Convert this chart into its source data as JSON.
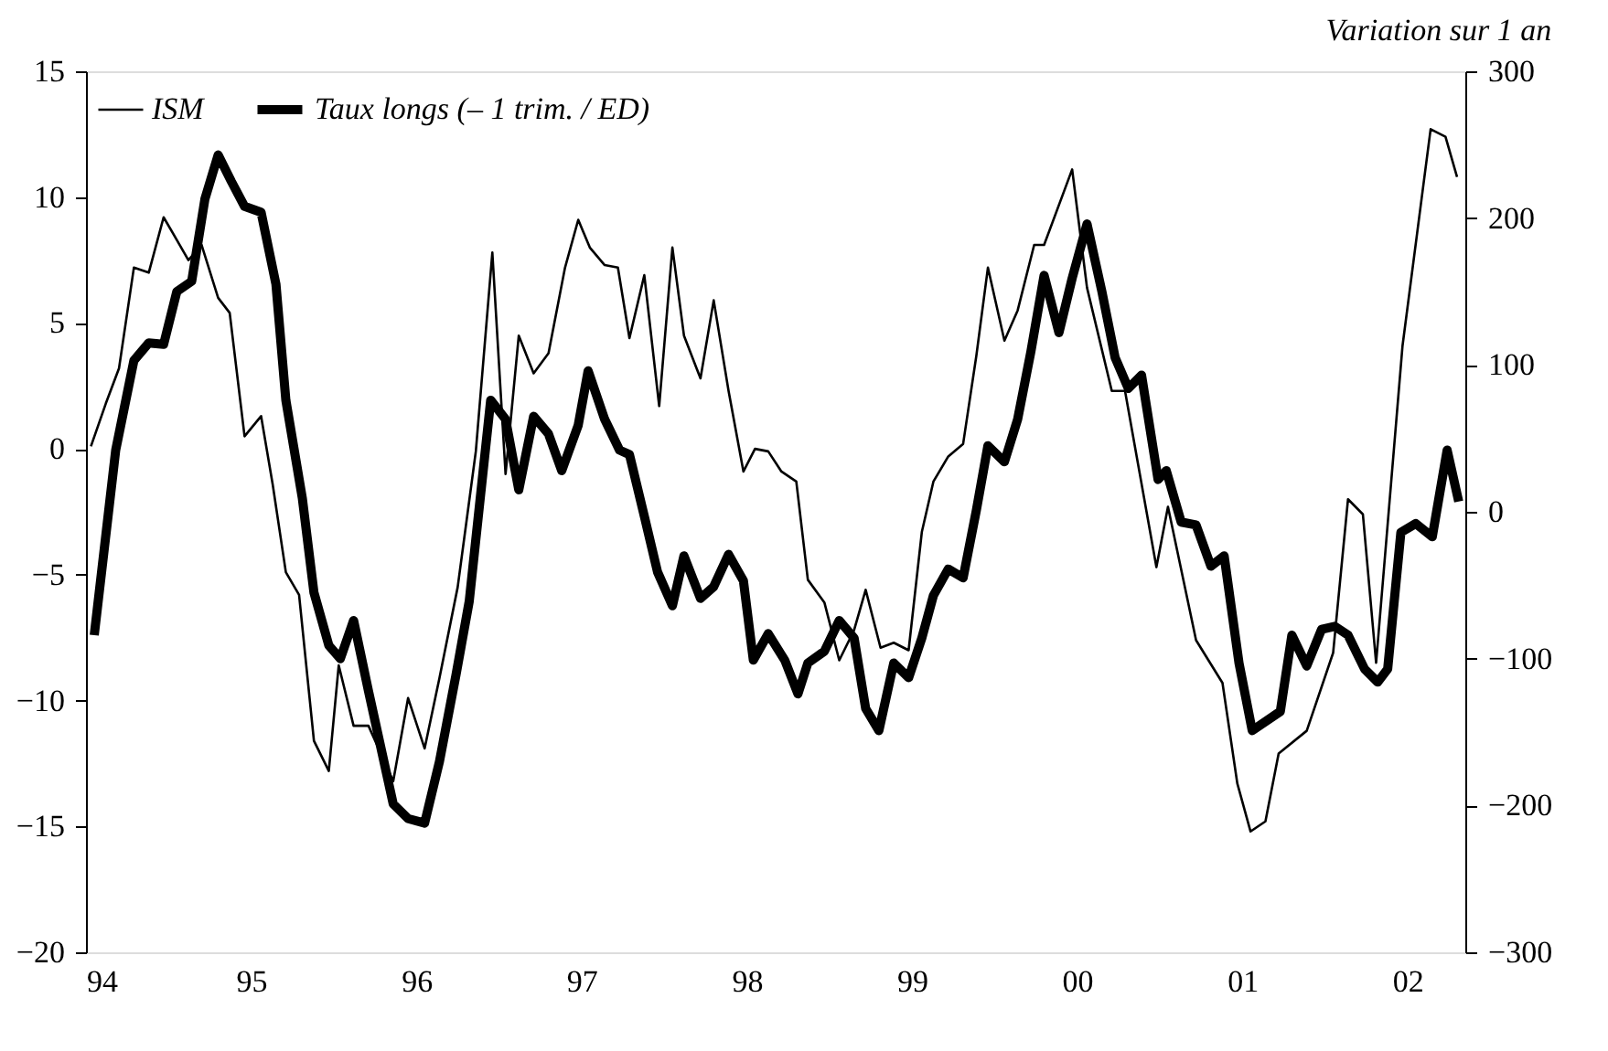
{
  "chart_data": {
    "type": "line",
    "annotations": [
      "Variation sur 1 an"
    ],
    "xlim": [
      1994,
      2002.35
    ],
    "xticks": [
      {
        "value": 1994,
        "label": "94"
      },
      {
        "value": 1995,
        "label": "95"
      },
      {
        "value": 1996,
        "label": "96"
      },
      {
        "value": 1997,
        "label": "97"
      },
      {
        "value": 1998,
        "label": "98"
      },
      {
        "value": 1999,
        "label": "99"
      },
      {
        "value": 2000,
        "label": "00"
      },
      {
        "value": 2001,
        "label": "01"
      },
      {
        "value": 2002,
        "label": "02"
      }
    ],
    "ylim": [
      -20,
      15
    ],
    "yticks": [
      -20,
      -15,
      -10,
      -5,
      0,
      5,
      10,
      15
    ],
    "y2lim": [
      -300,
      300
    ],
    "y2ticks": [
      -300,
      -200,
      -100,
      0,
      100,
      200,
      300
    ],
    "grid": false,
    "legend": "top left",
    "marker": "none",
    "series": [
      {
        "name": "ISM",
        "color": "#000000",
        "x": [
          1994.03,
          1994.12,
          1994.2,
          1994.29,
          1994.38,
          1994.47,
          1994.55,
          1994.62,
          1994.7,
          1994.8,
          1994.87,
          1994.96,
          1995.06,
          1995.13,
          1995.21,
          1995.29,
          1995.38,
          1995.47,
          1995.53,
          1995.62,
          1995.71,
          1995.86,
          1995.95,
          1996.05,
          1996.14,
          1996.25,
          1996.36,
          1996.46,
          1996.54,
          1996.62,
          1996.71,
          1996.8,
          1996.9,
          1996.98,
          1997.05,
          1997.14,
          1997.22,
          1997.29,
          1997.38,
          1997.47,
          1997.55,
          1997.62,
          1997.72,
          1997.8,
          1997.89,
          1997.98,
          1998.05,
          1998.13,
          1998.21,
          1998.3,
          1998.37,
          1998.47,
          1998.56,
          1998.65,
          1998.72,
          1998.81,
          1998.89,
          1998.98,
          1999.06,
          1999.13,
          1999.22,
          1999.31,
          1999.39,
          1999.46,
          1999.56,
          1999.64,
          1999.74,
          1999.8,
          1999.97,
          2000.06,
          2000.21,
          2000.29,
          2000.48,
          2000.55,
          2000.72,
          2000.88,
          2000.97,
          2001.05,
          2001.14,
          2001.22,
          2001.39,
          2001.55,
          2001.64,
          2001.73,
          2001.81,
          2001.97,
          2002.14,
          2002.23,
          2002.3
        ],
        "values": [
          0.1,
          1.8,
          3.2,
          7.2,
          7.0,
          9.2,
          8.3,
          7.5,
          8.1,
          6.0,
          5.4,
          0.5,
          1.3,
          -1.4,
          -4.9,
          -5.8,
          -11.6,
          -12.8,
          -8.6,
          -11.0,
          -11.0,
          -13.2,
          -9.9,
          -11.9,
          -9.1,
          -5.5,
          -0.1,
          7.8,
          -1.0,
          4.5,
          3.0,
          3.8,
          7.2,
          9.1,
          8.0,
          7.3,
          7.2,
          4.4,
          6.9,
          1.7,
          8.0,
          4.5,
          2.8,
          5.9,
          2.3,
          -0.9,
          0.0,
          -0.1,
          -0.9,
          -1.3,
          -5.2,
          -6.1,
          -8.4,
          -7.2,
          -5.6,
          -7.9,
          -7.7,
          -8.0,
          -3.3,
          -1.3,
          -0.3,
          0.2,
          3.7,
          7.2,
          4.3,
          5.5,
          8.1,
          8.1,
          11.1,
          6.4,
          2.3,
          2.3,
          -4.7,
          -2.3,
          -7.6,
          -9.3,
          -13.3,
          -15.2,
          -14.8,
          -12.1,
          -11.2,
          -8.1,
          -2.0,
          -2.6,
          -8.5,
          4.1,
          12.7,
          12.4,
          10.8
        ]
      },
      {
        "name": "Taux longs (– 1 trim. / ED)",
        "color": "#000000",
        "axis": "y2",
        "x": [
          1994.05,
          1994.18,
          1994.29,
          1994.38,
          1994.47,
          1994.55,
          1994.64,
          1994.72,
          1994.8,
          1994.88,
          1994.96,
          1995.06,
          1995.15,
          1995.21,
          1995.31,
          1995.38,
          1995.47,
          1995.54,
          1995.62,
          1995.71,
          1995.86,
          1995.95,
          1996.05,
          1996.14,
          1996.24,
          1996.32,
          1996.45,
          1996.54,
          1996.62,
          1996.71,
          1996.8,
          1996.88,
          1996.98,
          1997.04,
          1997.14,
          1997.23,
          1997.29,
          1997.38,
          1997.46,
          1997.55,
          1997.62,
          1997.72,
          1997.8,
          1997.89,
          1997.98,
          1998.04,
          1998.13,
          1998.23,
          1998.31,
          1998.37,
          1998.47,
          1998.56,
          1998.65,
          1998.72,
          1998.8,
          1998.89,
          1998.98,
          1999.06,
          1999.13,
          1999.22,
          1999.31,
          1999.39,
          1999.46,
          1999.56,
          1999.64,
          1999.72,
          1999.8,
          1999.89,
          1999.97,
          2000.06,
          2000.15,
          2000.23,
          2000.31,
          2000.39,
          2000.49,
          2000.54,
          2000.63,
          2000.72,
          2000.81,
          2000.89,
          2000.98,
          2001.06,
          2001.23,
          2001.3,
          2001.39,
          2001.48,
          2001.56,
          2001.64,
          2001.74,
          2001.82,
          2001.88,
          2001.96,
          2002.05,
          2002.15,
          2002.24,
          2002.31
        ],
        "values": [
          -84,
          42,
          103,
          115,
          114,
          150,
          157,
          213,
          243,
          225,
          208,
          204,
          155,
          76,
          9,
          -55,
          -91,
          -100,
          -74,
          -122,
          -199,
          -209,
          -212,
          -170,
          -111,
          -61,
          76,
          63,
          15,
          65,
          53,
          28,
          59,
          96,
          63,
          42,
          39,
          -3,
          -41,
          -64,
          -30,
          -59,
          -51,
          -29,
          -47,
          -101,
          -83,
          -101,
          -124,
          -103,
          -95,
          -74,
          -86,
          -134,
          -149,
          -103,
          -113,
          -86,
          -57,
          -39,
          -45,
          1,
          45,
          34,
          63,
          109,
          161,
          122,
          159,
          196,
          150,
          105,
          84,
          93,
          22,
          28,
          -7,
          -9,
          -37,
          -30,
          -103,
          -149,
          -136,
          -84,
          -105,
          -80,
          -78,
          -84,
          -107,
          -116,
          -107,
          -14,
          -8,
          -17,
          42,
          7
        ]
      }
    ]
  }
}
